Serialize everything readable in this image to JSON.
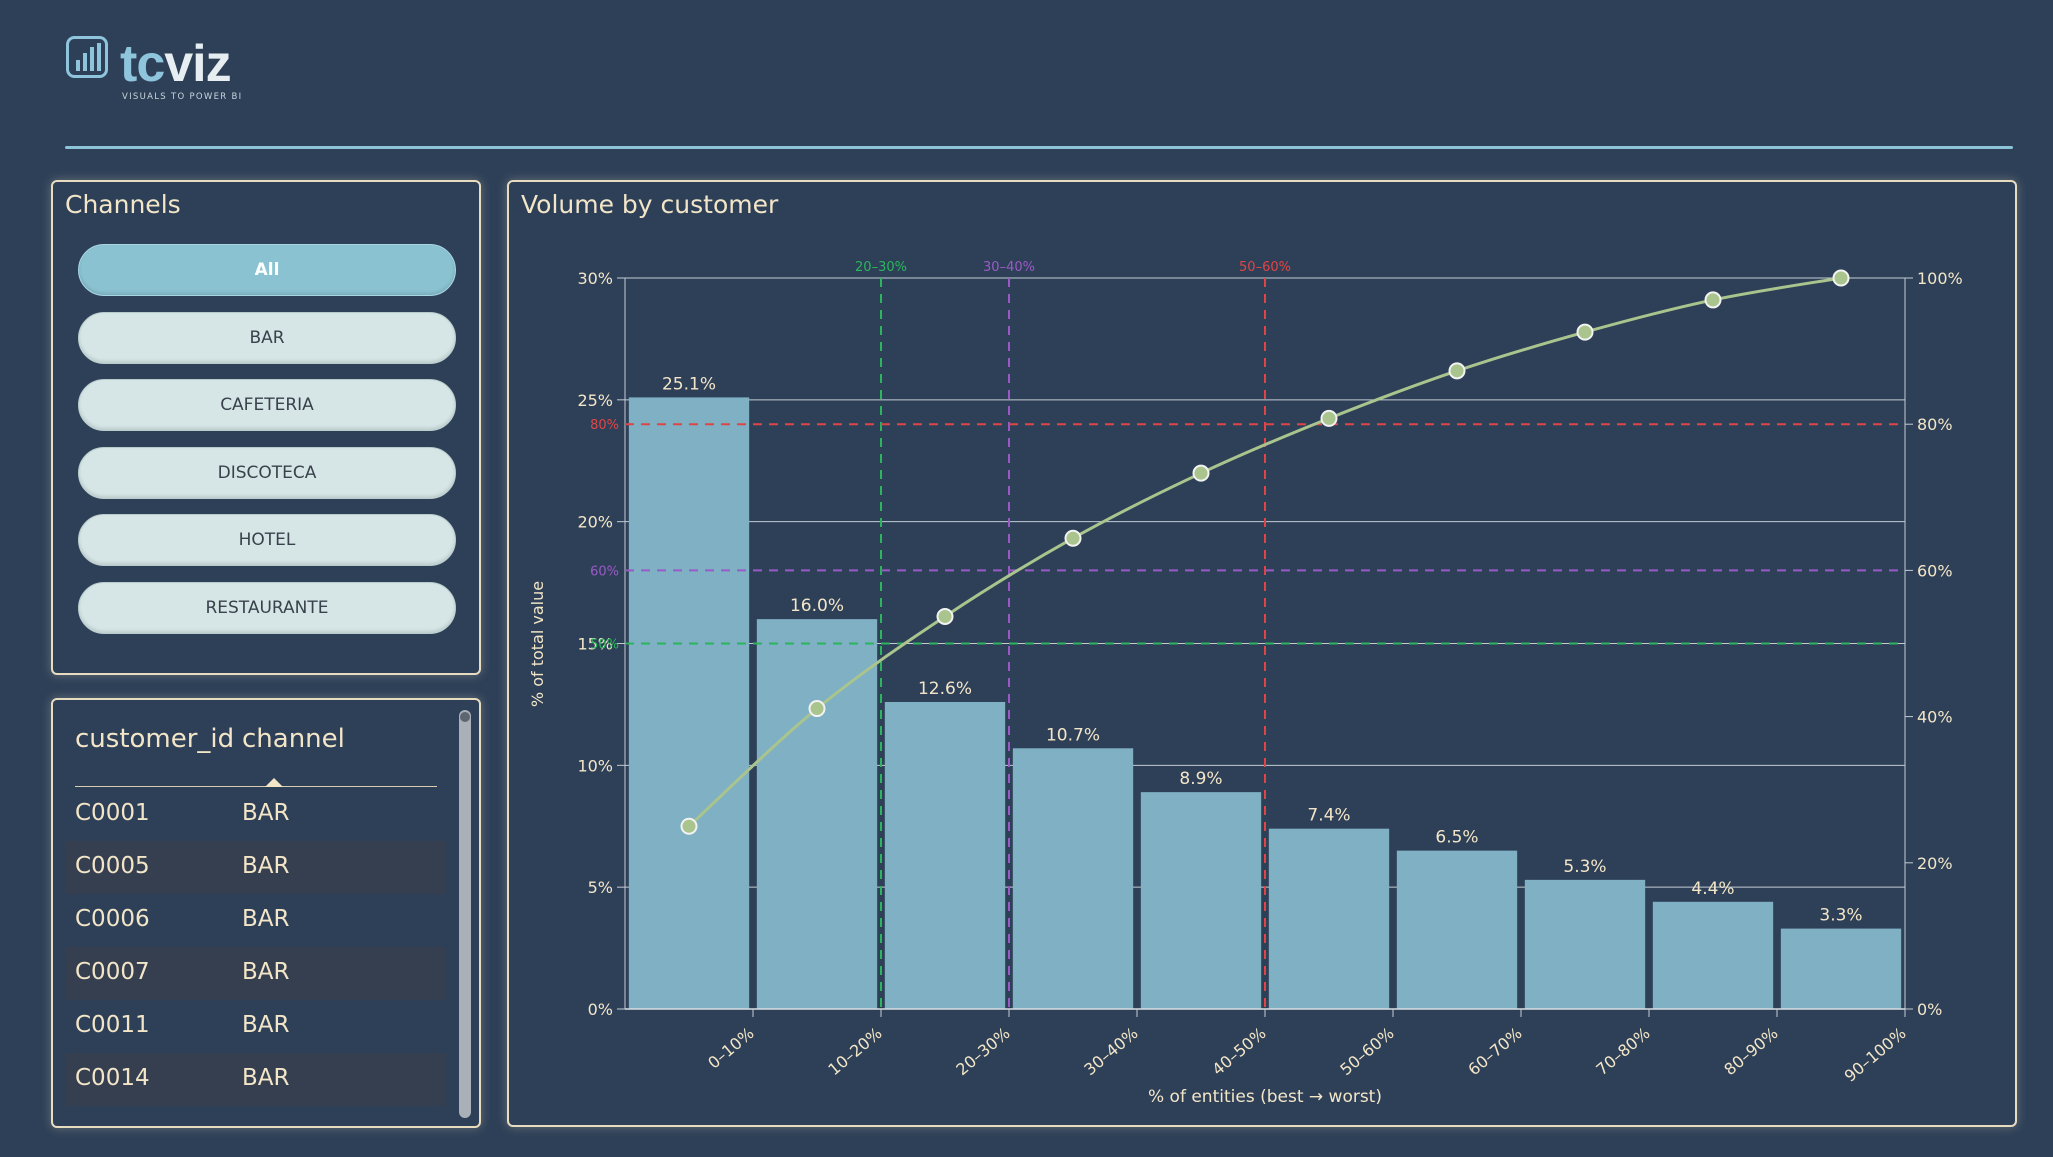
{
  "brand": {
    "name_part1": "tc",
    "name_part2": "viz",
    "tagline": "VISUALS TO POWER BI",
    "logo_icon": "bar-chart-icon"
  },
  "colors": {
    "background": "#2e4058",
    "accent": "#8ac2d2",
    "text": "#f3e6c8",
    "bars": "#7fb0c4",
    "cumulative_line": "#a9c48d",
    "marker_20_30": "#2bb55c",
    "marker_30_40": "#9b59c6",
    "marker_50_60": "#e04545"
  },
  "slicer": {
    "title": "Channels",
    "selected": "All",
    "options": [
      "All",
      "BAR",
      "CAFETERIA",
      "DISCOTECA",
      "HOTEL",
      "RESTAURANTE"
    ]
  },
  "table": {
    "columns": [
      "customer_id",
      "channel"
    ],
    "sorted_by": "channel",
    "rows": [
      [
        "C0001",
        "BAR"
      ],
      [
        "C0005",
        "BAR"
      ],
      [
        "C0006",
        "BAR"
      ],
      [
        "C0007",
        "BAR"
      ],
      [
        "C0011",
        "BAR"
      ],
      [
        "C0014",
        "BAR"
      ]
    ]
  },
  "chart_title": "Volume by customer",
  "chart_data": {
    "type": "bar",
    "title": "Volume by customer",
    "xlabel": "% of entities (best → worst)",
    "ylabel": "% of total value",
    "categories": [
      "0–10%",
      "10–20%",
      "20–30%",
      "30–40%",
      "40–50%",
      "50–60%",
      "60–70%",
      "70–80%",
      "80–90%",
      "90–100%"
    ],
    "series": [
      {
        "values": [
          25.1,
          16.0,
          12.6,
          10.7,
          8.9,
          7.4,
          6.5,
          5.3,
          4.4,
          3.3
        ]
      },
      {
        "values": [
          25.0,
          41.1,
          53.7,
          64.4,
          73.3,
          80.8,
          87.3,
          92.6,
          97.0,
          100.0
        ]
      }
    ],
    "data_labels": [
      "25.1%",
      "16.0%",
      "12.6%",
      "10.7%",
      "8.9%",
      "7.4%",
      "6.5%",
      "5.3%",
      "4.4%",
      "3.3%"
    ],
    "ylim": [
      0,
      30
    ],
    "yticks": [
      "0%",
      "5%",
      "10%",
      "15%",
      "20%",
      "25%",
      "30%"
    ],
    "y2lim": [
      0,
      100
    ],
    "y2ticks": [
      "0%",
      "20%",
      "40%",
      "60%",
      "80%",
      "100%"
    ],
    "reference_lines": [
      {
        "threshold": 50,
        "label": "50%",
        "category": "20–30%",
        "color": "#2bb55c"
      },
      {
        "threshold": 60,
        "label": "60%",
        "category": "30–40%",
        "color": "#9b59c6"
      },
      {
        "threshold": 80,
        "label": "80%",
        "category": "50–60%",
        "color": "#e04545"
      }
    ],
    "grid": true
  }
}
